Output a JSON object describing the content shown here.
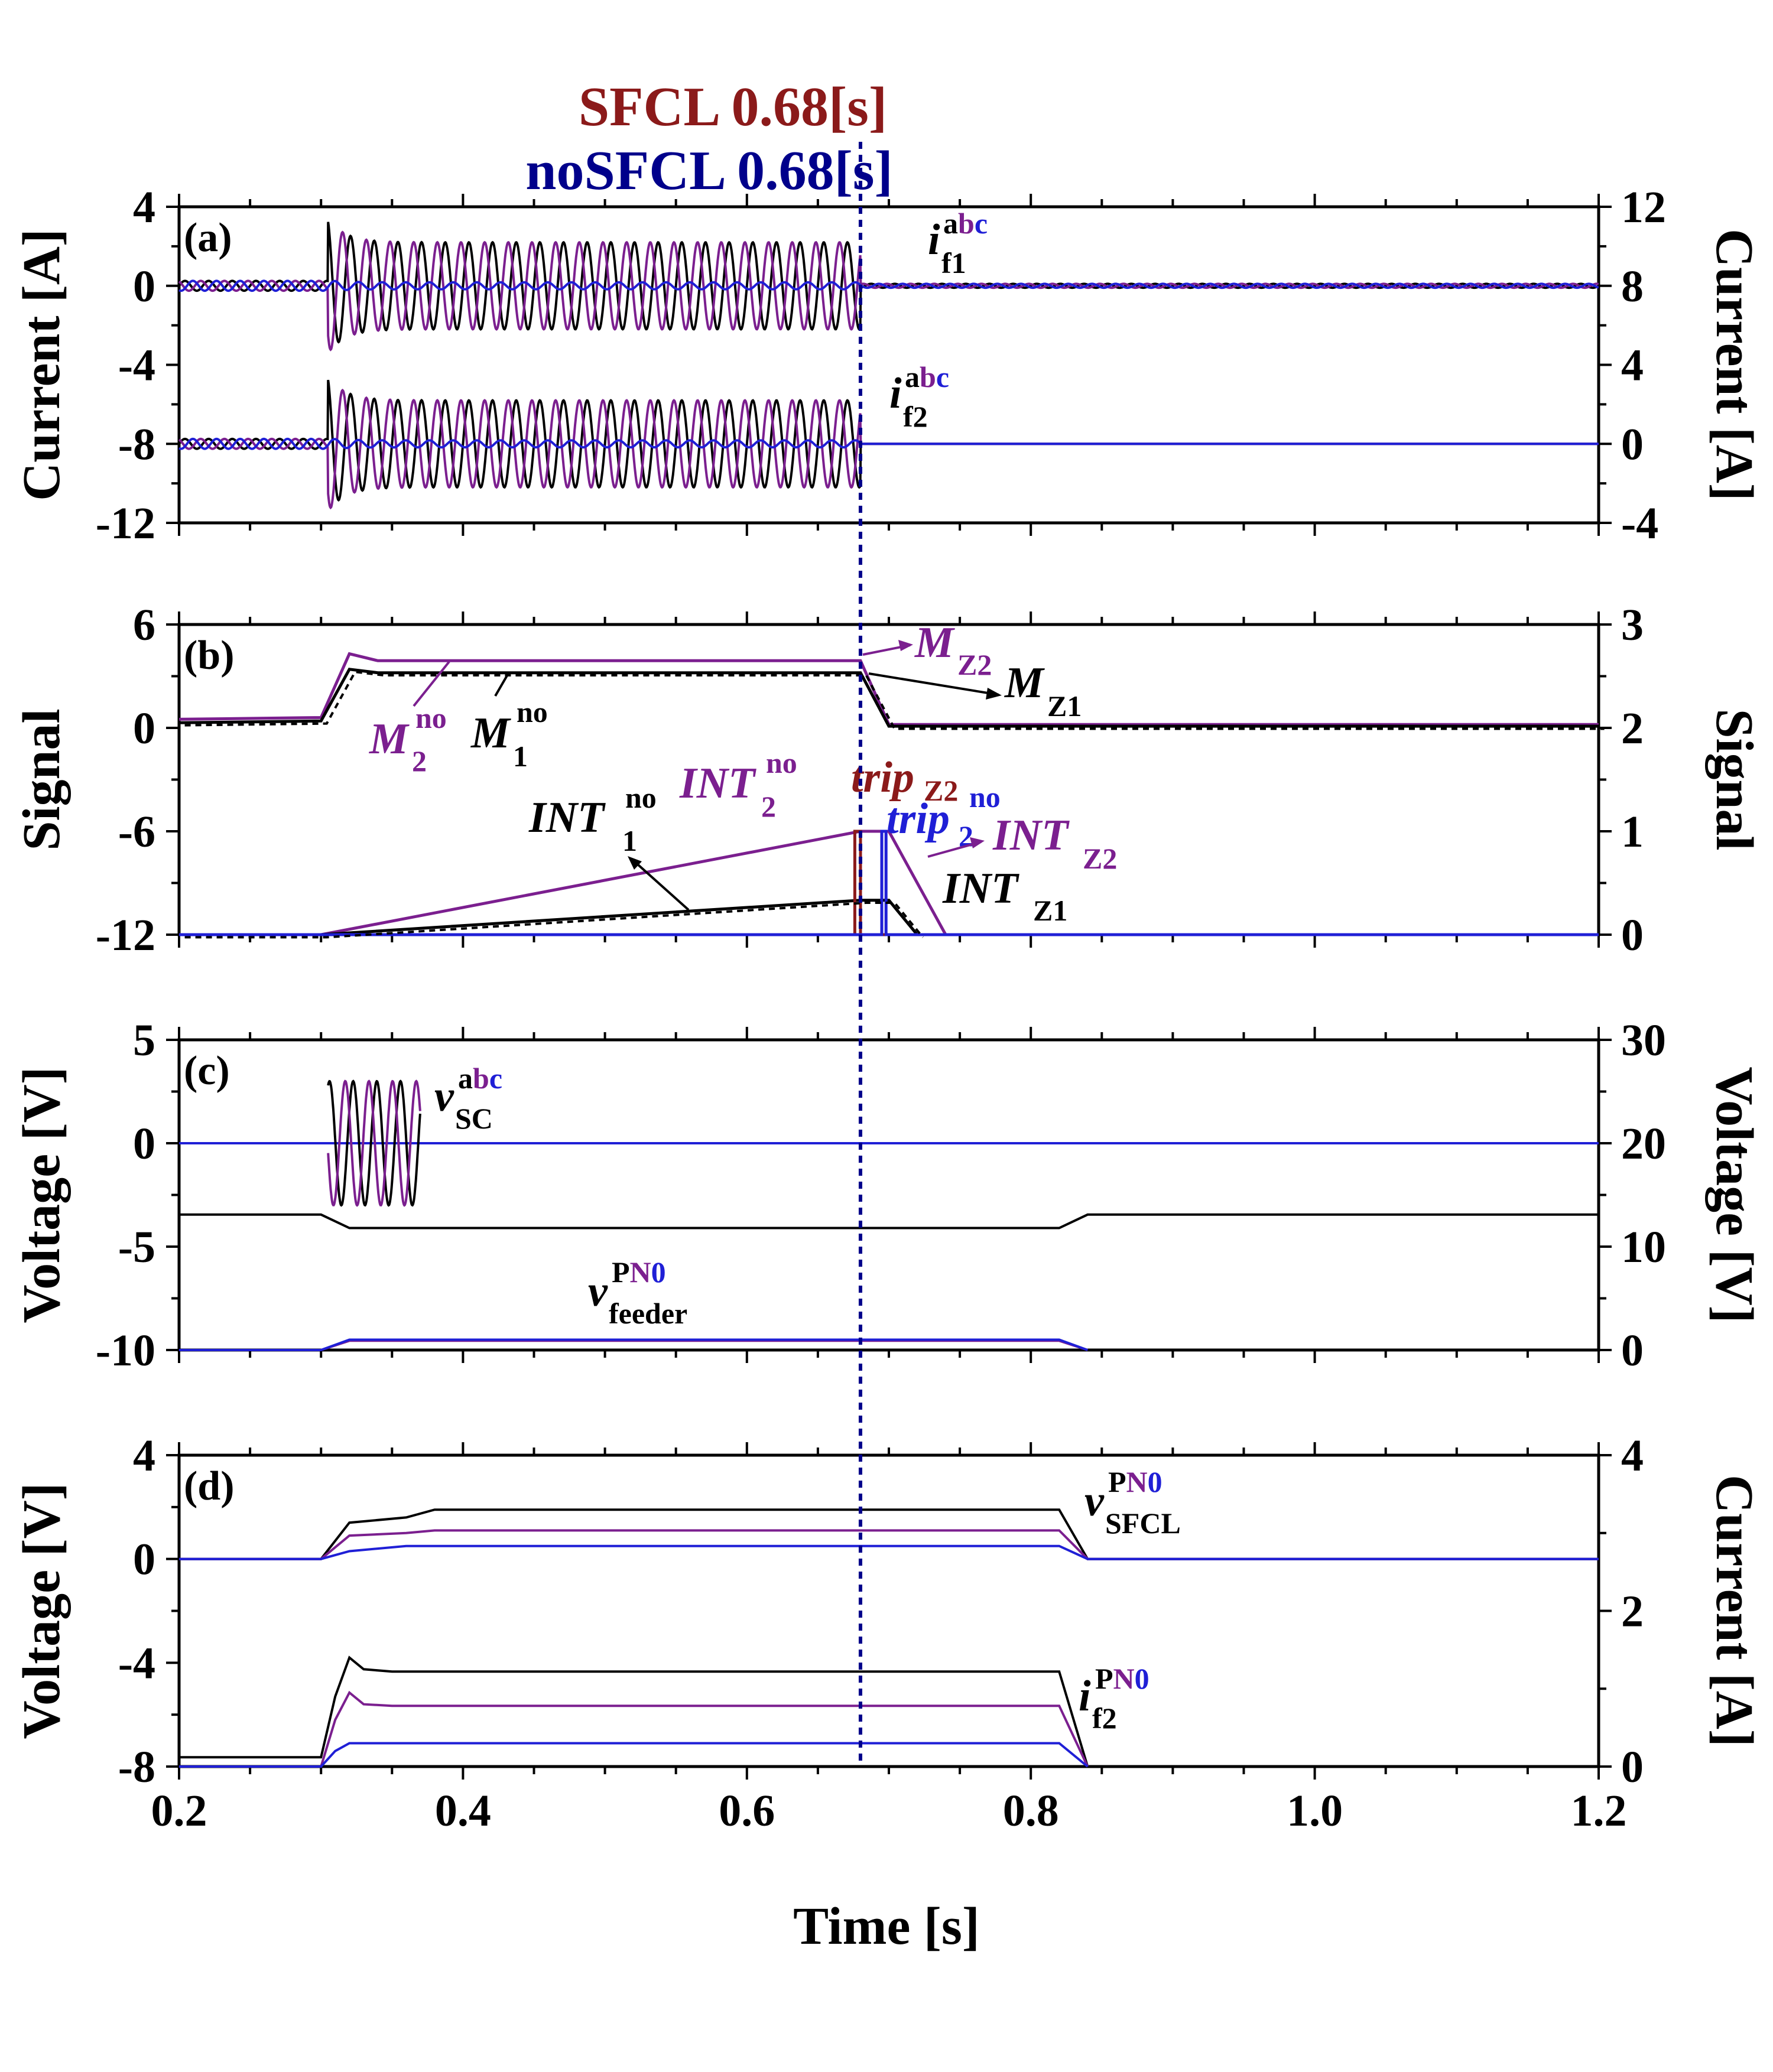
{
  "header": {
    "sfcl_label": "SFCL 0.68[s]",
    "nosfcl_label": "noSFCL 0.68[s]",
    "sfcl_color": "#8b1a1a",
    "nosfcl_color": "#00008b"
  },
  "colors": {
    "black": "#000000",
    "purple": "#7b1f8f",
    "blue": "#1f1fd6",
    "dark_red": "#8b1a1a",
    "marker_line": "#00008b"
  },
  "x_axis": {
    "label": "Time [s]",
    "range": [
      0.2,
      1.2
    ],
    "tick_labels": [
      "0.2",
      "0.4",
      "0.6",
      "0.8",
      "1.0",
      "1.2"
    ],
    "tick_values": [
      0.2,
      0.4,
      0.6,
      0.8,
      1.0,
      1.2
    ]
  },
  "event_time": 0.68,
  "chart_data": [
    {
      "panel": "(a)",
      "type": "line",
      "ylabel_left": "Current [A]",
      "ylabel_right": "Current [A]",
      "ylim_left": [
        -12,
        4
      ],
      "ylim_right": [
        -4,
        12
      ],
      "yticks_left": [
        "4",
        "0",
        "-4",
        "-8",
        "-12"
      ],
      "yticks_right": [
        "12",
        "8",
        "4",
        "0",
        "-4"
      ],
      "annotations": [
        {
          "base": "i",
          "sub": "f1",
          "sup_parts": [
            {
              "text": "a",
              "color": "#000000"
            },
            {
              "text": "b",
              "color": "#7b1f8f"
            },
            {
              "text": "c",
              "color": "#1f1fd6"
            }
          ]
        },
        {
          "base": "i",
          "sub": "f2",
          "sup_parts": [
            {
              "text": "a",
              "color": "#000000"
            },
            {
              "text": "b",
              "color": "#7b1f8f"
            },
            {
              "text": "c",
              "color": "#1f1fd6"
            }
          ]
        }
      ],
      "series": [
        {
          "id": "if1",
          "description": "three-phase fault current feeder 1",
          "offset": 0,
          "prefault_amplitude": 0.25,
          "fault_start": 0.305,
          "fault_end": 0.68,
          "fault_amplitude": 2.2,
          "peak": 3.4,
          "postfault_amplitude": 0.1,
          "frequency_hz": 60
        },
        {
          "id": "if2",
          "description": "three-phase fault current feeder 2",
          "offset": -8,
          "prefault_amplitude": 0.25,
          "fault_start": 0.305,
          "fault_end": 0.68,
          "fault_amplitude": 2.2,
          "peak": 3.4,
          "postfault_amplitude": 0.0,
          "frequency_hz": 60
        }
      ]
    },
    {
      "panel": "(b)",
      "type": "line",
      "ylabel_left": "Signal",
      "ylabel_right": "Signal",
      "ylim_left": [
        -12,
        6
      ],
      "ylim_right": [
        0,
        3
      ],
      "yticks_left": [
        "6",
        "0",
        "-6",
        "-12"
      ],
      "yticks_right": [
        "3",
        "2",
        "1",
        "0"
      ],
      "annotations": [
        {
          "base": "M",
          "sub": "Z2",
          "color": "#7b1f8f"
        },
        {
          "base": "M",
          "sub": "Z1",
          "color": "#000000"
        },
        {
          "base": "M",
          "sub": "2",
          "sup": "no",
          "color": "#7b1f8f"
        },
        {
          "base": "M",
          "sub": "1",
          "sup": "no",
          "color": "#000000"
        },
        {
          "base": "INT",
          "sub": "1",
          "sup": "no",
          "color": "#000000"
        },
        {
          "base": "INT",
          "sub": "2",
          "sup": "no",
          "color": "#7b1f8f"
        },
        {
          "base": "trip",
          "sub": "Z2",
          "color": "#8b1a1a"
        },
        {
          "base": "trip",
          "sub": "2",
          "sup": "no",
          "color": "#1f1fd6"
        },
        {
          "base": "INT",
          "sub": "Z2",
          "color": "#7b1f8f"
        },
        {
          "base": "INT",
          "sub": "Z1",
          "color": "#000000"
        }
      ],
      "series": [
        {
          "id": "M2",
          "axis": "left",
          "points": [
            [
              0.2,
              0.5
            ],
            [
              0.3,
              0.6
            ],
            [
              0.32,
              4.3
            ],
            [
              0.34,
              3.9
            ],
            [
              0.68,
              3.9
            ],
            [
              0.7,
              0.2
            ],
            [
              1.2,
              0.2
            ]
          ]
        },
        {
          "id": "M1",
          "axis": "left",
          "points": [
            [
              0.2,
              0.3
            ],
            [
              0.3,
              0.4
            ],
            [
              0.32,
              3.4
            ],
            [
              0.34,
              3.2
            ],
            [
              0.68,
              3.2
            ],
            [
              0.7,
              0.1
            ],
            [
              1.2,
              0.1
            ]
          ]
        },
        {
          "id": "INT2",
          "axis": "left",
          "points": [
            [
              0.2,
              -12
            ],
            [
              0.3,
              -12
            ],
            [
              0.68,
              -6
            ],
            [
              0.7,
              -6
            ],
            [
              0.74,
              -12
            ]
          ]
        },
        {
          "id": "INT1",
          "axis": "left",
          "points": [
            [
              0.2,
              -12
            ],
            [
              0.3,
              -12
            ],
            [
              0.68,
              -10
            ],
            [
              0.7,
              -10
            ],
            [
              0.72,
              -12
            ]
          ]
        },
        {
          "id": "tripZ2",
          "axis": "right",
          "points": [
            [
              0.2,
              0
            ],
            [
              0.676,
              0
            ],
            [
              0.676,
              1
            ],
            [
              0.68,
              1
            ],
            [
              0.68,
              0
            ],
            [
              1.2,
              0
            ]
          ]
        },
        {
          "id": "trip2no",
          "axis": "right",
          "points": [
            [
              0.2,
              0
            ],
            [
              0.695,
              0
            ],
            [
              0.695,
              1
            ],
            [
              0.698,
              1
            ],
            [
              0.698,
              0
            ],
            [
              1.2,
              0
            ]
          ]
        }
      ]
    },
    {
      "panel": "(c)",
      "type": "line",
      "ylabel_left": "Voltage [V]",
      "ylabel_right": "Voltage [V]",
      "ylim_left": [
        -10,
        5
      ],
      "ylim_right": [
        0,
        30
      ],
      "yticks_left": [
        "5",
        "0",
        "-5",
        "-10"
      ],
      "yticks_right": [
        "30",
        "20",
        "10",
        "0"
      ],
      "annotations": [
        {
          "base": "v",
          "sub": "SC",
          "sup_parts": [
            {
              "text": "a",
              "color": "#000000"
            },
            {
              "text": "b",
              "color": "#7b1f8f"
            },
            {
              "text": "c",
              "color": "#1f1fd6"
            }
          ]
        },
        {
          "base": "v",
          "sub": "feeder",
          "sup_parts": [
            {
              "text": "P",
              "color": "#000000"
            },
            {
              "text": "N",
              "color": "#7b1f8f"
            },
            {
              "text": "0",
              "color": "#1f1fd6"
            }
          ]
        }
      ],
      "series": [
        {
          "id": "vsc_blue",
          "axis": "left",
          "points": [
            [
              0.2,
              0
            ],
            [
              1.2,
              0
            ]
          ]
        },
        {
          "id": "vsc_oscill",
          "axis": "left",
          "fault_start": 0.305,
          "fault_end": 0.37,
          "amplitude": 3.0
        },
        {
          "id": "vfeeder_P",
          "axis": "right",
          "points": [
            [
              0.2,
              13.1
            ],
            [
              0.3,
              13.1
            ],
            [
              0.32,
              11.8
            ],
            [
              0.82,
              11.8
            ],
            [
              0.84,
              13.1
            ],
            [
              1.2,
              13.1
            ]
          ]
        },
        {
          "id": "vfeeder_N",
          "axis": "right",
          "points": [
            [
              0.2,
              0
            ],
            [
              0.3,
              0
            ],
            [
              0.32,
              0.9
            ],
            [
              0.82,
              0.9
            ],
            [
              0.84,
              0
            ]
          ]
        },
        {
          "id": "vfeeder_0",
          "axis": "right",
          "points": [
            [
              0.2,
              0
            ],
            [
              0.3,
              0
            ],
            [
              0.32,
              1.0
            ],
            [
              0.82,
              1.0
            ],
            [
              0.84,
              0
            ]
          ]
        }
      ]
    },
    {
      "panel": "(d)",
      "type": "line",
      "ylabel_left": "Voltage [V]",
      "ylabel_right": "Current [A]",
      "ylim_left": [
        -8,
        4
      ],
      "ylim_right": [
        0,
        4
      ],
      "yticks_left": [
        "4",
        "0",
        "-4",
        "-8"
      ],
      "yticks_right": [
        "4",
        "2",
        "0"
      ],
      "annotations": [
        {
          "base": "v",
          "sub": "SFCL",
          "sup_parts": [
            {
              "text": "P",
              "color": "#000000"
            },
            {
              "text": "N",
              "color": "#7b1f8f"
            },
            {
              "text": "0",
              "color": "#1f1fd6"
            }
          ]
        },
        {
          "base": "i",
          "sub": "f2",
          "sup_parts": [
            {
              "text": "P",
              "color": "#000000"
            },
            {
              "text": "N",
              "color": "#7b1f8f"
            },
            {
              "text": "0",
              "color": "#1f1fd6"
            }
          ]
        }
      ],
      "series": [
        {
          "id": "vSFCL_P",
          "axis": "left",
          "points": [
            [
              0.2,
              0
            ],
            [
              0.3,
              0
            ],
            [
              0.32,
              1.4
            ],
            [
              0.36,
              1.6
            ],
            [
              0.38,
              1.9
            ],
            [
              0.82,
              1.9
            ],
            [
              0.84,
              0
            ],
            [
              1.2,
              0
            ]
          ]
        },
        {
          "id": "vSFCL_N",
          "axis": "left",
          "points": [
            [
              0.2,
              0
            ],
            [
              0.3,
              0
            ],
            [
              0.32,
              0.9
            ],
            [
              0.36,
              1.0
            ],
            [
              0.38,
              1.1
            ],
            [
              0.82,
              1.1
            ],
            [
              0.84,
              0
            ],
            [
              1.2,
              0
            ]
          ]
        },
        {
          "id": "vSFCL_0",
          "axis": "left",
          "points": [
            [
              0.2,
              0
            ],
            [
              0.3,
              0
            ],
            [
              0.32,
              0.3
            ],
            [
              0.36,
              0.5
            ],
            [
              0.38,
              0.5
            ],
            [
              0.82,
              0.5
            ],
            [
              0.84,
              0
            ],
            [
              1.2,
              0
            ]
          ]
        },
        {
          "id": "if2_P",
          "axis": "right",
          "points": [
            [
              0.2,
              0.12
            ],
            [
              0.3,
              0.12
            ],
            [
              0.31,
              0.9
            ],
            [
              0.32,
              1.4
            ],
            [
              0.33,
              1.25
            ],
            [
              0.35,
              1.22
            ],
            [
              0.82,
              1.22
            ],
            [
              0.84,
              0
            ]
          ]
        },
        {
          "id": "if2_N",
          "axis": "right",
          "points": [
            [
              0.2,
              0
            ],
            [
              0.3,
              0
            ],
            [
              0.31,
              0.6
            ],
            [
              0.32,
              0.95
            ],
            [
              0.33,
              0.8
            ],
            [
              0.35,
              0.78
            ],
            [
              0.82,
              0.78
            ],
            [
              0.84,
              0
            ]
          ]
        },
        {
          "id": "if2_0",
          "axis": "right",
          "points": [
            [
              0.2,
              0
            ],
            [
              0.3,
              0
            ],
            [
              0.31,
              0.2
            ],
            [
              0.32,
              0.3
            ],
            [
              0.33,
              0.3
            ],
            [
              0.82,
              0.3
            ],
            [
              0.84,
              0
            ]
          ]
        }
      ]
    }
  ]
}
